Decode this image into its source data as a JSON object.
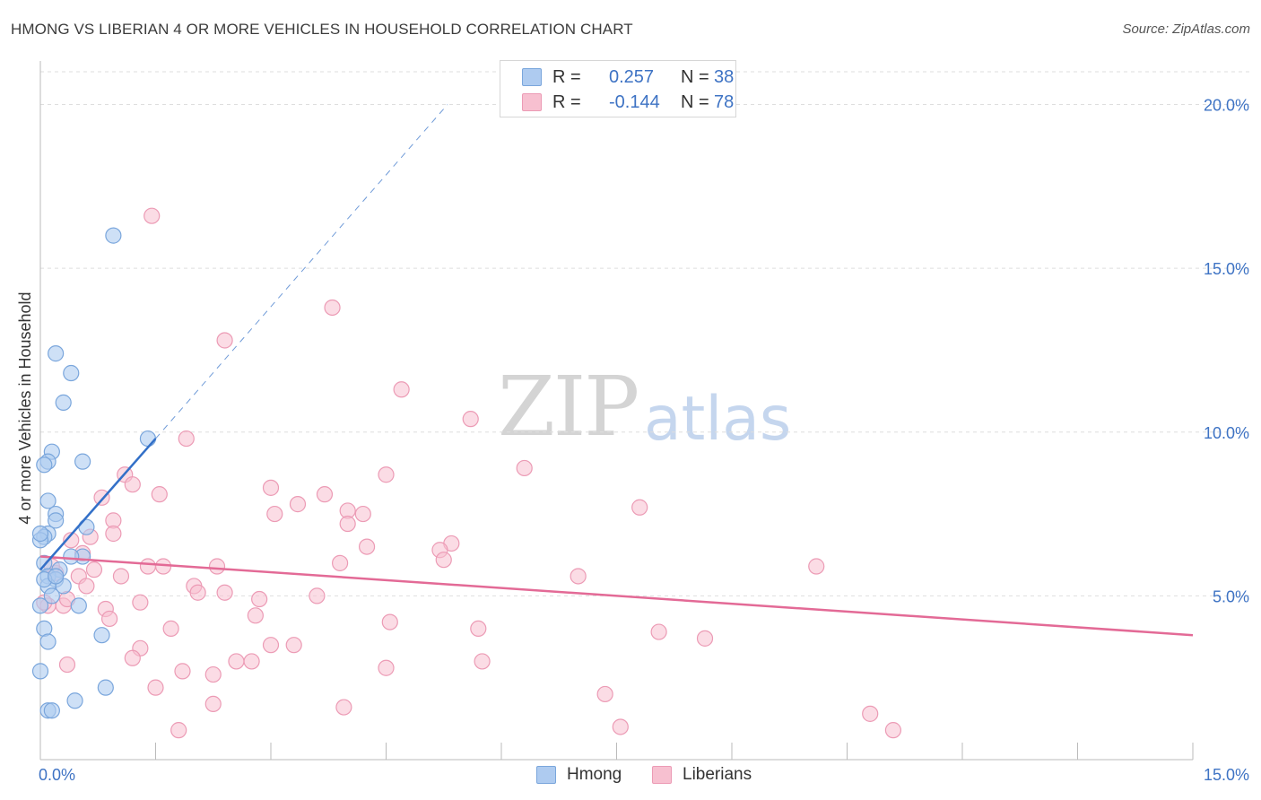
{
  "header": {
    "title": "HMONG VS LIBERIAN 4 OR MORE VEHICLES IN HOUSEHOLD CORRELATION CHART",
    "source": "Source: ZipAtlas.com"
  },
  "watermark": {
    "zip": "ZIP",
    "atlas": "atlas"
  },
  "legend_top": {
    "rows": [
      {
        "r_label": "R =",
        "r_value": "0.257",
        "n_label": "N =",
        "n_value": "38"
      },
      {
        "r_label": "R =",
        "r_value": "-0.144",
        "n_label": "N =",
        "n_value": "78"
      }
    ]
  },
  "legend_bottom": {
    "hmong": "Hmong",
    "liberians": "Liberians"
  },
  "colors": {
    "hmong_fill": "#aecbf0",
    "hmong_stroke": "#7aa6dc",
    "hmong_line": "#3370c8",
    "lib_fill": "#f7c0d0",
    "lib_stroke": "#ec9bb5",
    "lib_line": "#e36a96",
    "axis_label": "#3e73c4",
    "grid": "#dedede"
  },
  "chart_data": {
    "type": "scatter",
    "title": "HMONG VS LIBERIAN 4 OR MORE VEHICLES IN HOUSEHOLD CORRELATION CHART",
    "xlabel": "",
    "ylabel": "4 or more Vehicles in Household",
    "xlim": [
      0,
      15
    ],
    "ylim": [
      0,
      21
    ],
    "x_tick_labels": [
      "0.0%",
      "15.0%"
    ],
    "y_ticks": [
      5,
      10,
      15,
      20
    ],
    "y_tick_labels": [
      "5.0%",
      "10.0%",
      "15.0%",
      "20.0%"
    ],
    "series": [
      {
        "name": "Hmong",
        "r": 0.257,
        "n": 38,
        "trend": {
          "x": [
            0.0,
            1.5
          ],
          "y": [
            5.8,
            9.8
          ],
          "dashed_to": [
            5.3,
            20.0
          ]
        },
        "points": [
          [
            0.95,
            16.0
          ],
          [
            0.2,
            12.4
          ],
          [
            0.4,
            11.8
          ],
          [
            0.3,
            10.9
          ],
          [
            1.4,
            9.8
          ],
          [
            0.15,
            9.4
          ],
          [
            0.1,
            9.1
          ],
          [
            0.55,
            9.1
          ],
          [
            0.05,
            9.0
          ],
          [
            0.1,
            7.9
          ],
          [
            0.2,
            7.5
          ],
          [
            0.2,
            7.3
          ],
          [
            0.6,
            7.1
          ],
          [
            0.1,
            6.9
          ],
          [
            0.05,
            6.8
          ],
          [
            0.0,
            6.7
          ],
          [
            0.55,
            6.2
          ],
          [
            0.4,
            6.2
          ],
          [
            0.05,
            6.0
          ],
          [
            0.25,
            5.8
          ],
          [
            0.1,
            5.6
          ],
          [
            0.2,
            5.5
          ],
          [
            0.1,
            5.3
          ],
          [
            0.3,
            5.3
          ],
          [
            0.15,
            5.0
          ],
          [
            0.0,
            4.7
          ],
          [
            0.5,
            4.7
          ],
          [
            0.05,
            4.0
          ],
          [
            0.8,
            3.8
          ],
          [
            0.1,
            3.6
          ],
          [
            0.0,
            2.7
          ],
          [
            0.85,
            2.2
          ],
          [
            0.45,
            1.8
          ],
          [
            0.1,
            1.5
          ],
          [
            0.15,
            1.5
          ],
          [
            0.0,
            6.9
          ],
          [
            0.05,
            5.5
          ],
          [
            0.2,
            5.6
          ]
        ]
      },
      {
        "name": "Liberians",
        "r": -0.144,
        "n": 78,
        "trend": {
          "x": [
            0.0,
            15.0
          ],
          "y": [
            6.2,
            3.8
          ]
        },
        "points": [
          [
            1.45,
            16.6
          ],
          [
            3.8,
            13.8
          ],
          [
            2.4,
            12.8
          ],
          [
            4.7,
            11.3
          ],
          [
            5.6,
            10.4
          ],
          [
            1.9,
            9.8
          ],
          [
            6.3,
            8.9
          ],
          [
            1.1,
            8.7
          ],
          [
            4.5,
            8.7
          ],
          [
            1.2,
            8.4
          ],
          [
            3.0,
            8.3
          ],
          [
            1.55,
            8.1
          ],
          [
            3.7,
            8.1
          ],
          [
            0.8,
            8.0
          ],
          [
            3.35,
            7.8
          ],
          [
            7.8,
            7.7
          ],
          [
            4.0,
            7.6
          ],
          [
            4.2,
            7.5
          ],
          [
            3.05,
            7.5
          ],
          [
            0.95,
            7.3
          ],
          [
            4.0,
            7.2
          ],
          [
            0.95,
            6.9
          ],
          [
            0.65,
            6.8
          ],
          [
            0.4,
            6.7
          ],
          [
            5.35,
            6.6
          ],
          [
            4.25,
            6.5
          ],
          [
            5.2,
            6.4
          ],
          [
            5.25,
            6.1
          ],
          [
            3.9,
            6.0
          ],
          [
            2.3,
            5.9
          ],
          [
            1.4,
            5.9
          ],
          [
            1.6,
            5.9
          ],
          [
            10.1,
            5.9
          ],
          [
            0.7,
            5.8
          ],
          [
            0.2,
            5.7
          ],
          [
            0.5,
            5.6
          ],
          [
            1.05,
            5.6
          ],
          [
            7.0,
            5.6
          ],
          [
            2.0,
            5.3
          ],
          [
            0.6,
            5.3
          ],
          [
            2.05,
            5.1
          ],
          [
            2.4,
            5.1
          ],
          [
            3.6,
            5.0
          ],
          [
            2.85,
            4.9
          ],
          [
            1.3,
            4.8
          ],
          [
            0.3,
            4.7
          ],
          [
            0.85,
            4.6
          ],
          [
            0.1,
            4.7
          ],
          [
            2.8,
            4.4
          ],
          [
            0.9,
            4.3
          ],
          [
            4.55,
            4.2
          ],
          [
            1.7,
            4.0
          ],
          [
            5.7,
            4.0
          ],
          [
            8.05,
            3.9
          ],
          [
            8.65,
            3.7
          ],
          [
            3.0,
            3.5
          ],
          [
            3.3,
            3.5
          ],
          [
            1.3,
            3.4
          ],
          [
            1.2,
            3.1
          ],
          [
            2.55,
            3.0
          ],
          [
            2.75,
            3.0
          ],
          [
            5.75,
            3.0
          ],
          [
            0.35,
            2.9
          ],
          [
            4.5,
            2.8
          ],
          [
            1.85,
            2.7
          ],
          [
            2.25,
            2.6
          ],
          [
            1.5,
            2.2
          ],
          [
            7.35,
            2.0
          ],
          [
            2.25,
            1.7
          ],
          [
            3.95,
            1.6
          ],
          [
            10.8,
            1.4
          ],
          [
            7.55,
            1.0
          ],
          [
            11.1,
            0.9
          ],
          [
            1.8,
            0.9
          ],
          [
            0.05,
            4.8
          ],
          [
            0.15,
            5.9
          ],
          [
            0.35,
            4.9
          ],
          [
            0.55,
            6.3
          ]
        ]
      }
    ]
  }
}
